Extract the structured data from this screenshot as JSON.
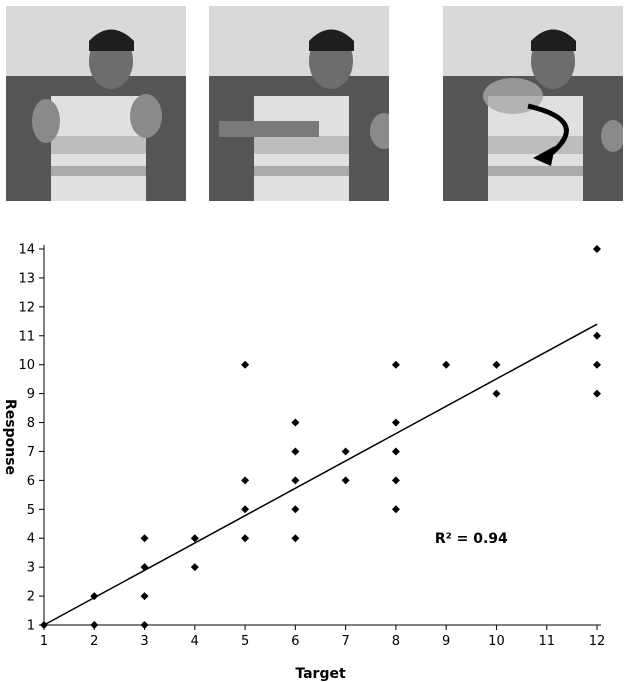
{
  "photos": [
    {
      "name": "photo-gesture-1",
      "depicts": "man seated on sofa holding up both hands with fingers spread"
    },
    {
      "name": "photo-gesture-2",
      "depicts": "man seated on sofa pointing down with one hand"
    },
    {
      "name": "photo-gesture-3",
      "depicts": "man seated on sofa with motion-blurred arm and curved arrow"
    }
  ],
  "chart_data": {
    "type": "scatter",
    "xlabel": "Target",
    "ylabel": "Response",
    "xlim": [
      1,
      12
    ],
    "ylim": [
      1,
      14
    ],
    "xticks": [
      1,
      2,
      3,
      4,
      5,
      6,
      7,
      8,
      9,
      10,
      11,
      12
    ],
    "yticks": [
      1,
      2,
      3,
      4,
      5,
      6,
      7,
      8,
      9,
      10,
      11,
      12,
      13,
      14
    ],
    "grid": false,
    "marker": "diamond",
    "points": [
      [
        1,
        1
      ],
      [
        2,
        1
      ],
      [
        2,
        2
      ],
      [
        3,
        1
      ],
      [
        3,
        2
      ],
      [
        3,
        3
      ],
      [
        3,
        4
      ],
      [
        4,
        3
      ],
      [
        4,
        4
      ],
      [
        5,
        4
      ],
      [
        5,
        5
      ],
      [
        5,
        6
      ],
      [
        5,
        10
      ],
      [
        6,
        4
      ],
      [
        6,
        5
      ],
      [
        6,
        6
      ],
      [
        6,
        7
      ],
      [
        6,
        8
      ],
      [
        7,
        6
      ],
      [
        7,
        7
      ],
      [
        8,
        5
      ],
      [
        8,
        6
      ],
      [
        8,
        7
      ],
      [
        8,
        8
      ],
      [
        8,
        10
      ],
      [
        9,
        10
      ],
      [
        10,
        9
      ],
      [
        10,
        10
      ],
      [
        12,
        9
      ],
      [
        12,
        10
      ],
      [
        12,
        11
      ],
      [
        12,
        14
      ]
    ],
    "trendline": {
      "x": [
        1,
        12
      ],
      "y": [
        1,
        11.4
      ]
    },
    "annotation": {
      "text": "R² = 0.94",
      "x": 9.5,
      "y": 4
    }
  }
}
